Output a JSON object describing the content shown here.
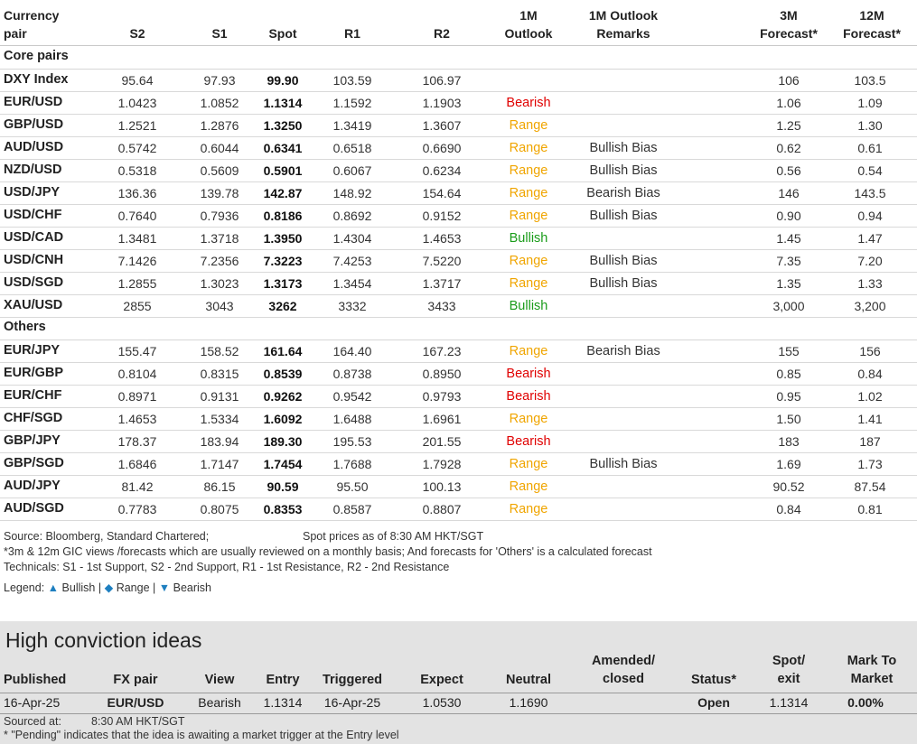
{
  "columns": {
    "pair_line1": "Currency",
    "pair_line2": "pair",
    "s2": "S2",
    "s1": "S1",
    "spot": "Spot",
    "r1": "R1",
    "r2": "R2",
    "outlook_line1": "1M",
    "outlook_line2": "Outlook",
    "remarks_line1": "1M Outlook",
    "remarks_line2": "Remarks",
    "f3m_line1": "3M",
    "f3m_line2": "Forecast*",
    "f12m_line1": "12M",
    "f12m_line2": "Forecast*"
  },
  "sections": [
    {
      "title": "Core pairs",
      "rows": [
        {
          "pair": "DXY Index",
          "s2": "95.64",
          "s1": "97.93",
          "spot": "99.90",
          "r1": "103.59",
          "r2": "106.97",
          "outlook": "",
          "remarks": "",
          "f3m": "106",
          "f12m": "103.5"
        },
        {
          "pair": "EUR/USD",
          "s2": "1.0423",
          "s1": "1.0852",
          "spot": "1.1314",
          "r1": "1.1592",
          "r2": "1.1903",
          "outlook": "Bearish",
          "remarks": "",
          "f3m": "1.06",
          "f12m": "1.09"
        },
        {
          "pair": "GBP/USD",
          "s2": "1.2521",
          "s1": "1.2876",
          "spot": "1.3250",
          "r1": "1.3419",
          "r2": "1.3607",
          "outlook": "Range",
          "remarks": "",
          "f3m": "1.25",
          "f12m": "1.30"
        },
        {
          "pair": "AUD/USD",
          "s2": "0.5742",
          "s1": "0.6044",
          "spot": "0.6341",
          "r1": "0.6518",
          "r2": "0.6690",
          "outlook": "Range",
          "remarks": "Bullish Bias",
          "f3m": "0.62",
          "f12m": "0.61"
        },
        {
          "pair": "NZD/USD",
          "s2": "0.5318",
          "s1": "0.5609",
          "spot": "0.5901",
          "r1": "0.6067",
          "r2": "0.6234",
          "outlook": "Range",
          "remarks": "Bullish Bias",
          "f3m": "0.56",
          "f12m": "0.54"
        },
        {
          "pair": "USD/JPY",
          "s2": "136.36",
          "s1": "139.78",
          "spot": "142.87",
          "r1": "148.92",
          "r2": "154.64",
          "outlook": "Range",
          "remarks": "Bearish Bias",
          "f3m": "146",
          "f12m": "143.5"
        },
        {
          "pair": "USD/CHF",
          "s2": "0.7640",
          "s1": "0.7936",
          "spot": "0.8186",
          "r1": "0.8692",
          "r2": "0.9152",
          "outlook": "Range",
          "remarks": "Bullish Bias",
          "f3m": "0.90",
          "f12m": "0.94"
        },
        {
          "pair": "USD/CAD",
          "s2": "1.3481",
          "s1": "1.3718",
          "spot": "1.3950",
          "r1": "1.4304",
          "r2": "1.4653",
          "outlook": "Bullish",
          "remarks": "",
          "f3m": "1.45",
          "f12m": "1.47"
        },
        {
          "pair": "USD/CNH",
          "s2": "7.1426",
          "s1": "7.2356",
          "spot": "7.3223",
          "r1": "7.4253",
          "r2": "7.5220",
          "outlook": "Range",
          "remarks": "Bullish Bias",
          "f3m": "7.35",
          "f12m": "7.20"
        },
        {
          "pair": "USD/SGD",
          "s2": "1.2855",
          "s1": "1.3023",
          "spot": "1.3173",
          "r1": "1.3454",
          "r2": "1.3717",
          "outlook": "Range",
          "remarks": "Bullish Bias",
          "f3m": "1.35",
          "f12m": "1.33"
        },
        {
          "pair": "XAU/USD",
          "s2": "2855",
          "s1": "3043",
          "spot": "3262",
          "r1": "3332",
          "r2": "3433",
          "outlook": "Bullish",
          "remarks": "",
          "f3m": "3,000",
          "f12m": "3,200"
        }
      ]
    },
    {
      "title": "Others",
      "rows": [
        {
          "pair": "EUR/JPY",
          "s2": "155.47",
          "s1": "158.52",
          "spot": "161.64",
          "r1": "164.40",
          "r2": "167.23",
          "outlook": "Range",
          "remarks": "Bearish Bias",
          "f3m": "155",
          "f12m": "156"
        },
        {
          "pair": "EUR/GBP",
          "s2": "0.8104",
          "s1": "0.8315",
          "spot": "0.8539",
          "r1": "0.8738",
          "r2": "0.8950",
          "outlook": "Bearish",
          "remarks": "",
          "f3m": "0.85",
          "f12m": "0.84"
        },
        {
          "pair": "EUR/CHF",
          "s2": "0.8971",
          "s1": "0.9131",
          "spot": "0.9262",
          "r1": "0.9542",
          "r2": "0.9793",
          "outlook": "Bearish",
          "remarks": "",
          "f3m": "0.95",
          "f12m": "1.02"
        },
        {
          "pair": "CHF/SGD",
          "s2": "1.4653",
          "s1": "1.5334",
          "spot": "1.6092",
          "r1": "1.6488",
          "r2": "1.6961",
          "outlook": "Range",
          "remarks": "",
          "f3m": "1.50",
          "f12m": "1.41"
        },
        {
          "pair": "GBP/JPY",
          "s2": "178.37",
          "s1": "183.94",
          "spot": "189.30",
          "r1": "195.53",
          "r2": "201.55",
          "outlook": "Bearish",
          "remarks": "",
          "f3m": "183",
          "f12m": "187"
        },
        {
          "pair": "GBP/SGD",
          "s2": "1.6846",
          "s1": "1.7147",
          "spot": "1.7454",
          "r1": "1.7688",
          "r2": "1.7928",
          "outlook": "Range",
          "remarks": "Bullish Bias",
          "f3m": "1.69",
          "f12m": "1.73"
        },
        {
          "pair": "AUD/JPY",
          "s2": "81.42",
          "s1": "86.15",
          "spot": "90.59",
          "r1": "95.50",
          "r2": "100.13",
          "outlook": "Range",
          "remarks": "",
          "f3m": "90.52",
          "f12m": "87.54"
        },
        {
          "pair": "AUD/SGD",
          "s2": "0.7783",
          "s1": "0.8075",
          "spot": "0.8353",
          "r1": "0.8587",
          "r2": "0.8807",
          "outlook": "Range",
          "remarks": "",
          "f3m": "0.84",
          "f12m": "0.81"
        }
      ]
    }
  ],
  "notes": {
    "source": "Source: Bloomberg, Standard Chartered;",
    "spot_time": "Spot prices as of 8:30 AM HKT/SGT",
    "forecast_note": "*3m & 12m GIC views /forecasts which are usually reviewed on a monthly basis; And forecasts for 'Others' is a calculated forecast",
    "technicals": "Technicals: S1 - 1st Support, S2 - 2nd Support, R1 - 1st Resistance, R2 - 2nd Resistance",
    "legend_label": "Legend:",
    "legend_bullish_symbol": "▲",
    "legend_bullish": "Bullish",
    "legend_range_symbol": "◆",
    "legend_range": "Range",
    "legend_bearish_symbol": "▼",
    "legend_bearish": "Bearish",
    "legend_sep": "|"
  },
  "colors": {
    "bearish": "#e00000",
    "range": "#f0a500",
    "bullish": "#1a9c1a",
    "legend_symbol": "#1e7fc0",
    "hci_background": "#e3e3e3"
  },
  "hci": {
    "title": "High conviction ideas",
    "headers": {
      "published": "Published",
      "fx_pair": "FX pair",
      "view": "View",
      "entry": "Entry",
      "triggered": "Triggered",
      "expect": "Expect",
      "neutral": "Neutral",
      "amended_line1": "Amended/",
      "amended_line2": "closed",
      "status": "Status*",
      "spot_line1": "Spot/",
      "spot_line2": "exit",
      "mtm_line1": "Mark To",
      "mtm_line2": "Market"
    },
    "row": {
      "published": "16-Apr-25",
      "fx_pair": "EUR/USD",
      "view": "Bearish",
      "entry": "1.1314",
      "triggered": "16-Apr-25",
      "expect": "1.0530",
      "neutral": "1.1690",
      "amended": "",
      "status": "Open",
      "spot": "1.1314",
      "mtm": "0.00%"
    },
    "sourced_label": "Sourced at:",
    "sourced_time": "8:30 AM HKT/SGT",
    "pending_note": "* \"Pending\" indicates that the idea is awaiting a market trigger at the Entry level"
  }
}
